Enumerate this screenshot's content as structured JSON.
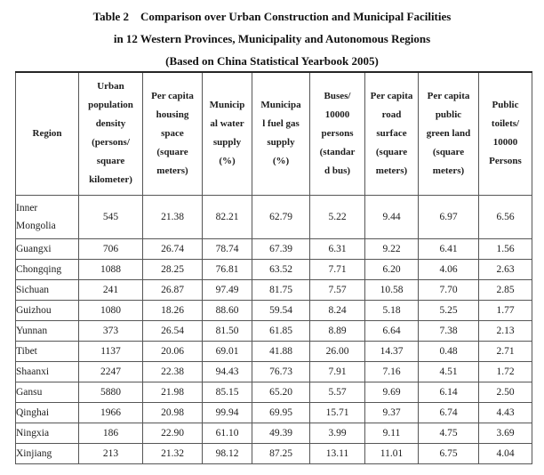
{
  "title": {
    "lines": [
      "Table 2    Comparison over Urban Construction and Municipal Facilities",
      "in 12 Western Provinces, Municipality and Autonomous Regions",
      "(Based on China Statistical Yearbook 2005)"
    ]
  },
  "table": {
    "header": {
      "region": "Region",
      "cols": [
        "Urban\npopulation\ndensity\n(persons/\nsquare\nkilometer)",
        "Per capita\nhousing\nspace\n(square\nmeters)",
        "Municip\nal water\nsupply\n(%)",
        "Municipa\nl fuel gas\nsupply\n(%)",
        "Buses/\n10000\npersons\n(standar\nd bus)",
        "Per capita\nroad\nsurface\n(square\nmeters)",
        "Per capita\npublic\ngreen land\n(square\nmeters)",
        "Public\ntoilets/\n10000\nPersons"
      ]
    },
    "rows": [
      {
        "region": "Inner\nMongolia",
        "values": [
          "545",
          "21.38",
          "82.21",
          "62.79",
          "5.22",
          "9.44",
          "6.97",
          "6.56"
        ]
      },
      {
        "region": "Guangxi",
        "values": [
          "706",
          "26.74",
          "78.74",
          "67.39",
          "6.31",
          "9.22",
          "6.41",
          "1.56"
        ]
      },
      {
        "region": "Chongqing",
        "values": [
          "1088",
          "28.25",
          "76.81",
          "63.52",
          "7.71",
          "6.20",
          "4.06",
          "2.63"
        ]
      },
      {
        "region": "Sichuan",
        "values": [
          "241",
          "26.87",
          "97.49",
          "81.75",
          "7.57",
          "10.58",
          "7.70",
          "2.85"
        ]
      },
      {
        "region": "Guizhou",
        "values": [
          "1080",
          "18.26",
          "88.60",
          "59.54",
          "8.24",
          "5.18",
          "5.25",
          "1.77"
        ]
      },
      {
        "region": "Yunnan",
        "values": [
          "373",
          "26.54",
          "81.50",
          "61.85",
          "8.89",
          "6.64",
          "7.38",
          "2.13"
        ]
      },
      {
        "region": "Tibet",
        "values": [
          "1137",
          "20.06",
          "69.01",
          "41.88",
          "26.00",
          "14.37",
          "0.48",
          "2.71"
        ]
      },
      {
        "region": "Shaanxi",
        "values": [
          "2247",
          "22.38",
          "94.43",
          "76.73",
          "7.91",
          "7.16",
          "4.51",
          "1.72"
        ]
      },
      {
        "region": "Gansu",
        "values": [
          "5880",
          "21.98",
          "85.15",
          "65.20",
          "5.57",
          "9.69",
          "6.14",
          "2.50"
        ]
      },
      {
        "region": "Qinghai",
        "values": [
          "1966",
          "20.98",
          "99.94",
          "69.95",
          "15.71",
          "9.37",
          "6.74",
          "4.43"
        ]
      },
      {
        "region": "Ningxia",
        "values": [
          "186",
          "22.90",
          "61.10",
          "49.39",
          "3.99",
          "9.11",
          "4.75",
          "3.69"
        ]
      },
      {
        "region": "Xinjiang",
        "values": [
          "213",
          "21.32",
          "98.12",
          "87.25",
          "13.11",
          "11.01",
          "6.75",
          "4.04"
        ]
      }
    ]
  }
}
